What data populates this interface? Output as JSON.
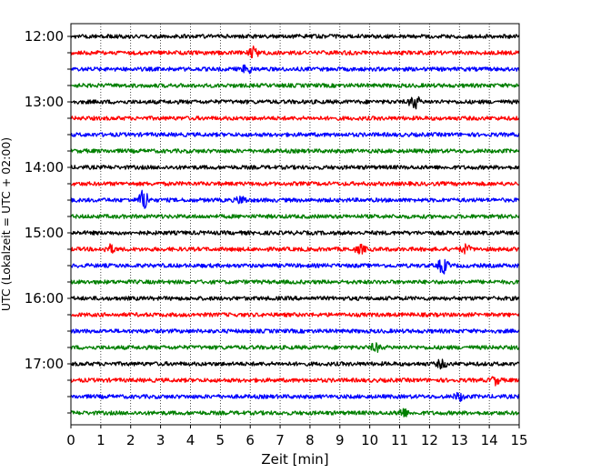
{
  "chart_data": {
    "type": "line",
    "title": "",
    "xlabel": "Zeit  [min]",
    "ylabel": "UTC (Lokalzeit = UTC + 02:00)",
    "xlim": [
      0,
      15
    ],
    "x_ticks": [
      0,
      1,
      2,
      3,
      4,
      5,
      6,
      7,
      8,
      9,
      10,
      11,
      12,
      13,
      14,
      15
    ],
    "y_ticks": [
      "12:00",
      "13:00",
      "14:00",
      "15:00",
      "16:00",
      "17:00"
    ],
    "grid": "vertical dotted at each minute",
    "trace_interval_minutes": 15,
    "start_time": "12:00",
    "trace_count": 24,
    "trace_colors": [
      "#000000",
      "#ff0000",
      "#0000ff",
      "#007f00"
    ],
    "events": [
      {
        "trace": "12:15",
        "minute": 6.1,
        "amplitude": 0.45
      },
      {
        "trace": "12:30",
        "minute": 5.9,
        "amplitude": 0.35
      },
      {
        "trace": "13:00",
        "minute": 11.5,
        "amplitude": 0.55
      },
      {
        "trace": "14:30",
        "minute": 2.45,
        "amplitude": 0.9
      },
      {
        "trace": "14:30",
        "minute": 5.7,
        "amplitude": 0.3
      },
      {
        "trace": "15:15",
        "minute": 1.3,
        "amplitude": 0.3
      },
      {
        "trace": "15:15",
        "minute": 9.7,
        "amplitude": 0.3
      },
      {
        "trace": "15:15",
        "minute": 13.2,
        "amplitude": 0.3
      },
      {
        "trace": "15:30",
        "minute": 12.45,
        "amplitude": 0.6
      },
      {
        "trace": "16:45",
        "minute": 10.2,
        "amplitude": 0.3
      },
      {
        "trace": "17:00",
        "minute": 12.4,
        "amplitude": 0.3
      },
      {
        "trace": "17:15",
        "minute": 14.2,
        "amplitude": 0.3
      },
      {
        "trace": "17:30",
        "minute": 13.0,
        "amplitude": 0.3
      },
      {
        "trace": "17:45",
        "minute": 11.1,
        "amplitude": 0.35
      }
    ]
  }
}
